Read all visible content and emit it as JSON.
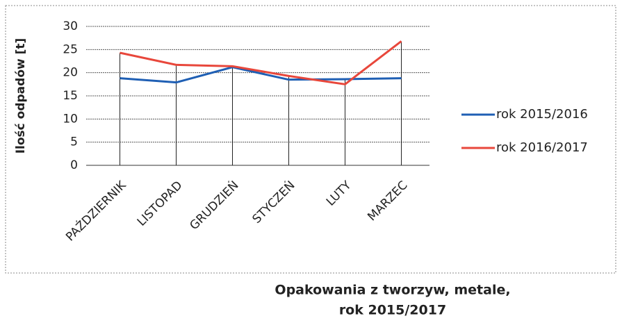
{
  "chart_data": {
    "type": "line",
    "title": [
      "Opakowania z tworzyw, metale,",
      "rok 2015/2017"
    ],
    "y_label": "Ilość odpadów [t]",
    "categories": [
      "PAŹDZIERNIK",
      "LISTOPAD",
      "GRUDZIEŃ",
      "STYCZEŃ",
      "LUTY",
      "MARZEC"
    ],
    "series": [
      {
        "name": "rok 2015/2016",
        "color": "#1f5fb4",
        "values": [
          18.8,
          17.9,
          21.2,
          18.5,
          18.6,
          18.8
        ]
      },
      {
        "name": "rok 2016/2017",
        "color": "#e8473b",
        "values": [
          24.3,
          21.7,
          21.4,
          19.3,
          17.5,
          26.8
        ]
      }
    ],
    "ylim": [
      0,
      30
    ],
    "yticks": [
      0,
      5,
      10,
      15,
      20,
      25,
      30
    ],
    "grid": true,
    "legend": "right"
  }
}
